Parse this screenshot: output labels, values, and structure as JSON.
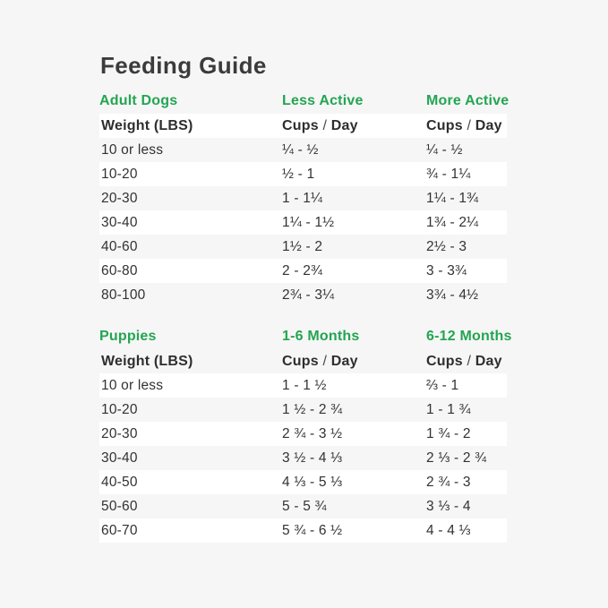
{
  "title": "Feeding Guide",
  "colors": {
    "background": "#f6f6f6",
    "row_stripe": "#ffffff",
    "accent_green": "#23a551",
    "title_text": "#3b3b3b",
    "body_text": "#323232"
  },
  "adult_table": {
    "section_label": "Adult Dogs",
    "activity_labels": [
      "Less Active",
      "More Active"
    ],
    "header": {
      "weight": "Weight (LBS)",
      "cups": "Cups",
      "slash": "/",
      "day": "Day"
    },
    "rows": [
      {
        "weight": "10 or less",
        "less_active": "¼ - ½",
        "more_active": "¼ - ½"
      },
      {
        "weight": "10-20",
        "less_active": "½ - 1",
        "more_active": "¾ - 1¼"
      },
      {
        "weight": "20-30",
        "less_active": "1 - 1¼",
        "more_active": "1¼ - 1¾"
      },
      {
        "weight": "30-40",
        "less_active": "1¼ - 1½",
        "more_active": "1¾ - 2¼"
      },
      {
        "weight": "40-60",
        "less_active": "1½ - 2",
        "more_active": "2½ - 3"
      },
      {
        "weight": "60-80",
        "less_active": "2 - 2¾",
        "more_active": "3 - 3¾"
      },
      {
        "weight": "80-100",
        "less_active": "2¾ - 3¼",
        "more_active": "3¾ - 4½"
      }
    ]
  },
  "puppy_table": {
    "section_label": "Puppies",
    "activity_labels": [
      "1-6 Months",
      "6-12 Months"
    ],
    "header": {
      "weight": "Weight (LBS)",
      "cups": "Cups",
      "slash": "/",
      "day": "Day"
    },
    "rows": [
      {
        "weight": "10 or less",
        "months_1_6": "1 - 1 ½",
        "months_6_12": "⅔ - 1"
      },
      {
        "weight": "10-20",
        "months_1_6": "1 ½ - 2 ¾",
        "months_6_12": "1 - 1 ¾"
      },
      {
        "weight": "20-30",
        "months_1_6": "2 ¾ - 3 ½",
        "months_6_12": "1 ¾ - 2"
      },
      {
        "weight": "30-40",
        "months_1_6": "3 ½ - 4 ⅓",
        "months_6_12": "2 ⅓ - 2 ¾"
      },
      {
        "weight": "40-50",
        "months_1_6": "4 ⅓ - 5 ⅓",
        "months_6_12": "2 ¾ - 3"
      },
      {
        "weight": "50-60",
        "months_1_6": "5 - 5 ¾",
        "months_6_12": "3 ⅓ - 4"
      },
      {
        "weight": "60-70",
        "months_1_6": "5 ¾ - 6 ½",
        "months_6_12": "4 - 4 ⅓"
      }
    ]
  }
}
